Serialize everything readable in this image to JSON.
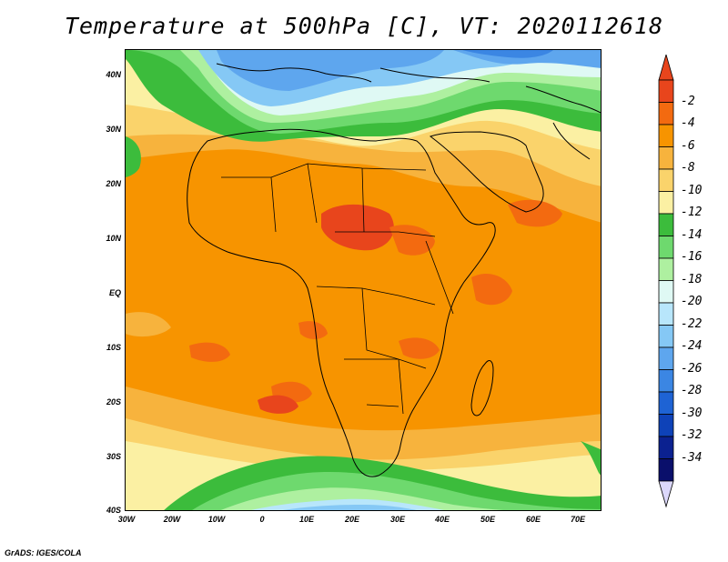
{
  "title": "Temperature at 500hPa [C], VT: 2020112618",
  "footer": "GrADS: IGES/COLA",
  "latitude_labels": [
    "40N",
    "30N",
    "20N",
    "10N",
    "EQ",
    "10S",
    "20S",
    "30S",
    "40S"
  ],
  "longitude_labels": [
    "30W",
    "20W",
    "10W",
    "0",
    "10E",
    "20E",
    "30E",
    "40E",
    "50E",
    "60E",
    "70E"
  ],
  "colorbar": {
    "labels": [
      "-2",
      "-4",
      "-6",
      "-8",
      "-10",
      "-12",
      "-14",
      "-16",
      "-18",
      "-20",
      "-22",
      "-24",
      "-26",
      "-28",
      "-30",
      "-32",
      "-34"
    ],
    "colors": [
      "#e8451c",
      "#f36a10",
      "#f79400",
      "#f7b33d",
      "#fad36b",
      "#fbf0a3",
      "#3cbc3c",
      "#6ed96e",
      "#aef0a0",
      "#dff9f4",
      "#b8e6fb",
      "#85c8f5",
      "#5ea6ee",
      "#3b86e3",
      "#1e63d4",
      "#0e42b8",
      "#0b2190",
      "#0a0f6b"
    ],
    "top_triangle_color": "#e8451c",
    "bottom_triangle_color": "#dcd8fb"
  }
}
